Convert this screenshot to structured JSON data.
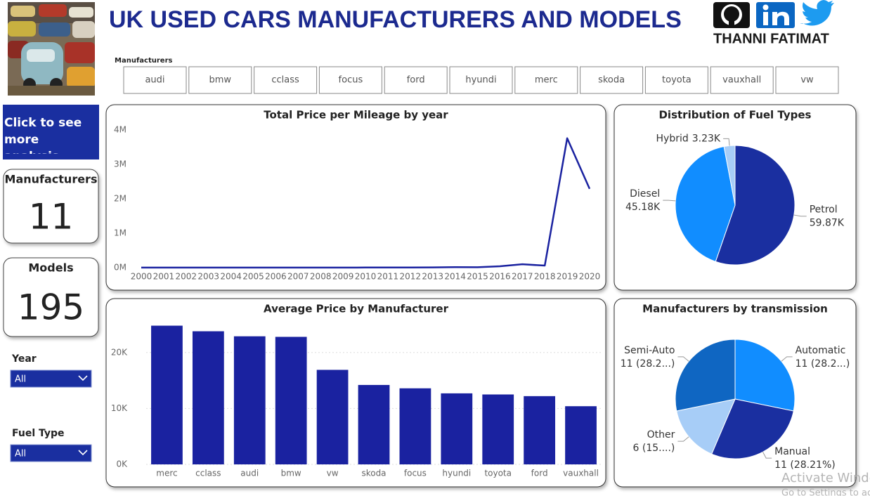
{
  "header": {
    "title": "UK USED CARS MANUFACTURERS AND MODELS",
    "author": "THANNI FATIMAT"
  },
  "slicer": {
    "label": "Manufacturers",
    "options": [
      "audi",
      "bmw",
      "cclass",
      "focus",
      "ford",
      "hyundi",
      "merc",
      "skoda",
      "toyota",
      "vauxhall",
      "vw"
    ]
  },
  "button": "Click to see more analysis",
  "cards": [
    {
      "label": "Manufacturers",
      "value": 11
    },
    {
      "label": "Models",
      "value": 195
    }
  ],
  "filters": [
    {
      "label": "Year",
      "value": "All"
    },
    {
      "label": "Fuel Type",
      "value": "All"
    }
  ],
  "watermark": {
    "title": "Activate Windows",
    "subtitle": "Go to Settings to activate Windows."
  },
  "chart_data": [
    {
      "type": "line",
      "title": "Total Price per Mileage by year",
      "categories": [
        "2000",
        "2001",
        "2002",
        "2003",
        "2004",
        "2005",
        "2006",
        "2007",
        "2008",
        "2009",
        "2010",
        "2011",
        "2012",
        "2013",
        "2014",
        "2015",
        "2016",
        "2017",
        "2018",
        "2019",
        "2020"
      ],
      "values": [
        3000,
        3000,
        3000,
        3000,
        3000,
        3000,
        3000,
        3000,
        3000,
        3000,
        4000,
        5000,
        6000,
        8000,
        15000,
        12000,
        40000,
        100000,
        60000,
        3760000,
        2290000
      ],
      "color": "#1a22a0",
      "ylim": [
        0,
        4000000
      ],
      "yticks": [
        {
          "value": 0,
          "label": "0M"
        },
        {
          "value": 1000000,
          "label": "1M"
        },
        {
          "value": 2000000,
          "label": "2M"
        },
        {
          "value": 3000000,
          "label": "3M"
        },
        {
          "value": 4000000,
          "label": "4M"
        }
      ]
    },
    {
      "type": "pie",
      "title": "Distribution of Fuel Types",
      "categories": [
        "Petrol",
        "Diesel",
        "Hybrid"
      ],
      "values": [
        59870,
        45180,
        3230
      ],
      "value_labels": [
        "59.87K",
        "45.18K",
        "3.23K"
      ],
      "colors": [
        "#1a2fa0",
        "#118dff",
        "#a7cdf7"
      ]
    },
    {
      "type": "bar",
      "title": "Average Price by Manufacturer",
      "categories": [
        "merc",
        "cclass",
        "audi",
        "bmw",
        "vw",
        "skoda",
        "focus",
        "hyundi",
        "toyota",
        "ford",
        "vauxhall"
      ],
      "values": [
        24800,
        23800,
        22900,
        22800,
        16900,
        14200,
        13600,
        12700,
        12500,
        12200,
        10400
      ],
      "color": "#1a22a0",
      "ylim": [
        0,
        26000
      ],
      "yticks": [
        {
          "value": 0,
          "label": "0K"
        },
        {
          "value": 10000,
          "label": "10K"
        },
        {
          "value": 20000,
          "label": "20K"
        }
      ],
      "grid": true
    },
    {
      "type": "pie",
      "title": "Manufacturers by transmission",
      "categories": [
        "Automatic",
        "Manual",
        "Other",
        "Semi-Auto"
      ],
      "values": [
        11,
        11,
        6,
        11
      ],
      "value_labels": [
        "11 (28.2...)",
        "11 (28.21%)",
        "6 (15....)",
        "11 (28.2...)"
      ],
      "colors": [
        "#118dff",
        "#1a2fa0",
        "#a7cdf7",
        "#0f66c2"
      ]
    }
  ]
}
